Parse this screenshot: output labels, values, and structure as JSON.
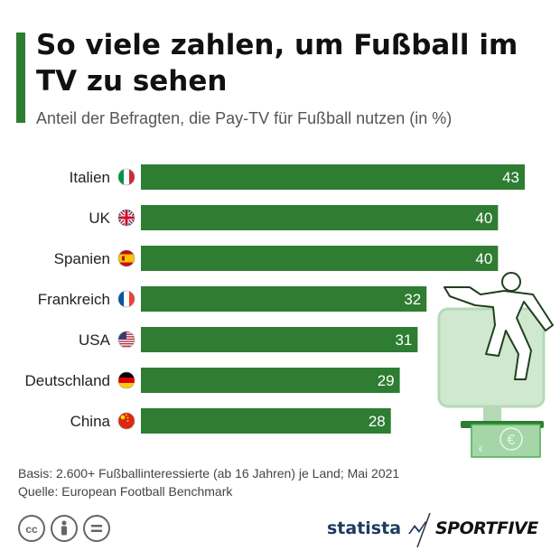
{
  "header": {
    "title": "So viele zahlen, um Fußball im TV zu sehen",
    "subtitle": "Anteil der Befragten, die Pay-TV für Fußball nutzen (in %)"
  },
  "colors": {
    "bar": "#2e7d32",
    "accent": "#2e7d32",
    "illustration": "#cfe8cf"
  },
  "chart_data": {
    "type": "bar",
    "orientation": "horizontal",
    "categories": [
      "Italien",
      "UK",
      "Spanien",
      "Frankreich",
      "USA",
      "Deutschland",
      "China"
    ],
    "values": [
      43,
      40,
      40,
      32,
      31,
      29,
      28
    ],
    "flags": [
      "italy-flag-icon",
      "uk-flag-icon",
      "spain-flag-icon",
      "france-flag-icon",
      "usa-flag-icon",
      "germany-flag-icon",
      "china-flag-icon"
    ],
    "xlim": [
      0,
      43
    ],
    "grid": false,
    "data_labels": true
  },
  "footer": {
    "basis": "Basis: 2.600+ Fußballinteressierte (ab 16 Jahren) je Land; Mai 2021",
    "source": "Quelle: European Football Benchmark"
  },
  "brands": {
    "statista": "statista",
    "sportfive": "SPORTFIVE"
  },
  "illustration": {
    "currency_symbol": "€"
  }
}
